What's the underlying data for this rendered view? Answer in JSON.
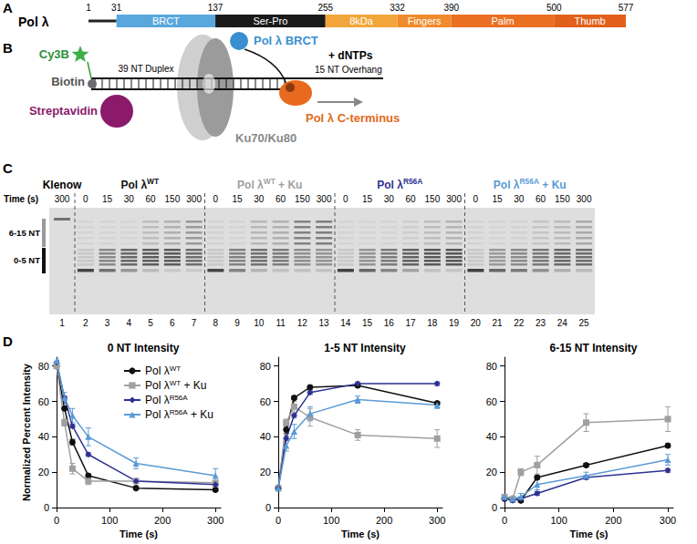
{
  "panel_A": {
    "letter": "A",
    "protein": "Pol λ",
    "boundaries": [
      1,
      31,
      137,
      255,
      332,
      390,
      500,
      577
    ],
    "domains": [
      {
        "label": "BRCT",
        "start": 31,
        "end": 137,
        "color": "#5aa7dd"
      },
      {
        "label": "Ser-Pro",
        "start": 137,
        "end": 255,
        "color": "#1a1a1a"
      },
      {
        "label": "8kDa",
        "start": 255,
        "end": 332,
        "color": "#f2a53a"
      },
      {
        "label": "Fingers",
        "start": 332,
        "end": 390,
        "color": "#f08a2c"
      },
      {
        "label": "Palm",
        "start": 390,
        "end": 500,
        "color": "#ea6f22"
      },
      {
        "label": "Thumb",
        "start": 500,
        "end": 577,
        "color": "#e2601c"
      }
    ]
  },
  "panel_B": {
    "letter": "B",
    "labels": {
      "dye": "Cy3B",
      "biotin": "Biotin",
      "streptavidin": "Streptavidin",
      "duplex": "39 NT Duplex",
      "overhang": "15 NT Overhang",
      "brct": "Pol λ BRCT",
      "cterm": "Pol λ C-terminus",
      "ku": "Ku70/Ku80",
      "dntps": "+ dNTPs"
    }
  },
  "panel_C": {
    "letter": "C",
    "time_label": "Time (s)",
    "size_labels": [
      "6-15 NT",
      "0-5 NT"
    ],
    "control": {
      "label": "Klenow",
      "time": 300,
      "lane": 1
    },
    "groups": [
      {
        "label": "Pol λWT",
        "color": "#111111",
        "times": [
          0,
          15,
          30,
          60,
          150,
          300
        ],
        "lanes": [
          2,
          3,
          4,
          5,
          6,
          7
        ]
      },
      {
        "label": "Pol λWT + Ku",
        "color": "#a0a0a0",
        "times": [
          0,
          15,
          30,
          60,
          150,
          300
        ],
        "lanes": [
          8,
          9,
          10,
          11,
          12,
          13
        ]
      },
      {
        "label": "Pol λR56A",
        "color": "#2e3192",
        "times": [
          0,
          15,
          30,
          60,
          150,
          300
        ],
        "lanes": [
          14,
          15,
          16,
          17,
          18,
          19
        ]
      },
      {
        "label": "Pol λR56A + Ku",
        "color": "#5b9bd5",
        "times": [
          0,
          15,
          30,
          60,
          150,
          300
        ],
        "lanes": [
          20,
          21,
          22,
          23,
          24,
          25
        ]
      }
    ]
  },
  "panel_D": {
    "letter": "D"
  },
  "chart_data": [
    {
      "type": "line",
      "title": "0 NT Intensity",
      "xlabel": "Time (s)",
      "ylabel": "Normalized Percent Intensity",
      "x": [
        0,
        15,
        30,
        60,
        150,
        300
      ],
      "xlim": [
        0,
        310
      ],
      "xticks": [
        0,
        100,
        200,
        300
      ],
      "ylim": [
        0,
        85
      ],
      "yticks": [
        0,
        20,
        40,
        60,
        80
      ],
      "grid": false,
      "legend": "upper right",
      "series": [
        {
          "name": "Pol λWT",
          "color": "#111111",
          "marker": "circle",
          "values": [
            80,
            56,
            37,
            18,
            11,
            10
          ],
          "errors": [
            1,
            1,
            1.5,
            1,
            1,
            1
          ]
        },
        {
          "name": "Pol λWT + Ku",
          "color": "#a0a0a0",
          "marker": "square",
          "values": [
            80,
            48,
            22,
            15,
            15,
            14
          ],
          "errors": [
            1,
            2,
            3,
            2,
            1,
            1
          ]
        },
        {
          "name": "Pol λR56A",
          "color": "#2e3192",
          "marker": "diamond",
          "values": [
            82,
            62,
            46,
            30,
            15,
            13
          ],
          "errors": [
            1,
            1,
            1,
            1,
            1,
            1
          ]
        },
        {
          "name": "Pol λR56A + Ku",
          "color": "#5b9bd5",
          "marker": "triangle",
          "values": [
            83,
            62,
            52,
            40,
            25,
            18
          ],
          "errors": [
            1,
            3,
            4,
            5,
            3,
            4
          ]
        }
      ]
    },
    {
      "type": "line",
      "title": "1-5 NT Intensity",
      "xlabel": "Time (s)",
      "x": [
        0,
        15,
        30,
        60,
        150,
        300
      ],
      "xlim": [
        0,
        310
      ],
      "xticks": [
        0,
        100,
        200,
        300
      ],
      "ylim": [
        0,
        85
      ],
      "yticks": [
        0,
        20,
        40,
        60,
        80
      ],
      "grid": false,
      "series": [
        {
          "name": "Pol λWT",
          "color": "#111111",
          "marker": "circle",
          "values": [
            11,
            44,
            62,
            68,
            69,
            59
          ],
          "errors": [
            1,
            2,
            1,
            1,
            1,
            1
          ]
        },
        {
          "name": "Pol λWT + Ku",
          "color": "#a0a0a0",
          "marker": "square",
          "values": [
            11,
            48,
            57,
            51,
            41,
            39
          ],
          "errors": [
            1,
            2,
            3,
            5,
            3,
            5
          ]
        },
        {
          "name": "Pol λR56A",
          "color": "#2e3192",
          "marker": "diamond",
          "values": [
            11,
            39,
            52,
            65,
            70,
            70
          ],
          "errors": [
            1,
            1,
            1,
            1,
            1,
            1
          ]
        },
        {
          "name": "Pol λR56A + Ku",
          "color": "#5b9bd5",
          "marker": "triangle",
          "values": [
            11,
            35,
            43,
            53,
            61,
            58
          ],
          "errors": [
            1,
            3,
            4,
            4,
            2,
            2
          ]
        }
      ]
    },
    {
      "type": "line",
      "title": "6-15 NT Intensity",
      "xlabel": "Time (s)",
      "x": [
        0,
        15,
        30,
        60,
        150,
        300
      ],
      "xlim": [
        0,
        310
      ],
      "xticks": [
        0,
        100,
        200,
        300
      ],
      "ylim": [
        0,
        85
      ],
      "yticks": [
        0,
        20,
        40,
        60,
        80
      ],
      "grid": false,
      "series": [
        {
          "name": "Pol λWT",
          "color": "#111111",
          "marker": "circle",
          "values": [
            5,
            5,
            4,
            17,
            24,
            35
          ],
          "errors": [
            1,
            1,
            1,
            1,
            1,
            1
          ]
        },
        {
          "name": "Pol λWT + Ku",
          "color": "#a0a0a0",
          "marker": "square",
          "values": [
            6,
            5,
            20,
            24,
            48,
            50
          ],
          "errors": [
            1,
            1,
            2,
            5,
            5,
            7
          ]
        },
        {
          "name": "Pol λR56A",
          "color": "#2e3192",
          "marker": "diamond",
          "values": [
            5,
            4,
            5,
            8,
            17,
            21
          ],
          "errors": [
            1,
            1,
            1,
            1,
            1,
            1
          ]
        },
        {
          "name": "Pol λR56A + Ku",
          "color": "#5b9bd5",
          "marker": "triangle",
          "values": [
            6,
            5,
            6,
            13,
            18,
            27
          ],
          "errors": [
            1,
            1,
            2,
            3,
            2,
            3
          ]
        }
      ]
    }
  ]
}
